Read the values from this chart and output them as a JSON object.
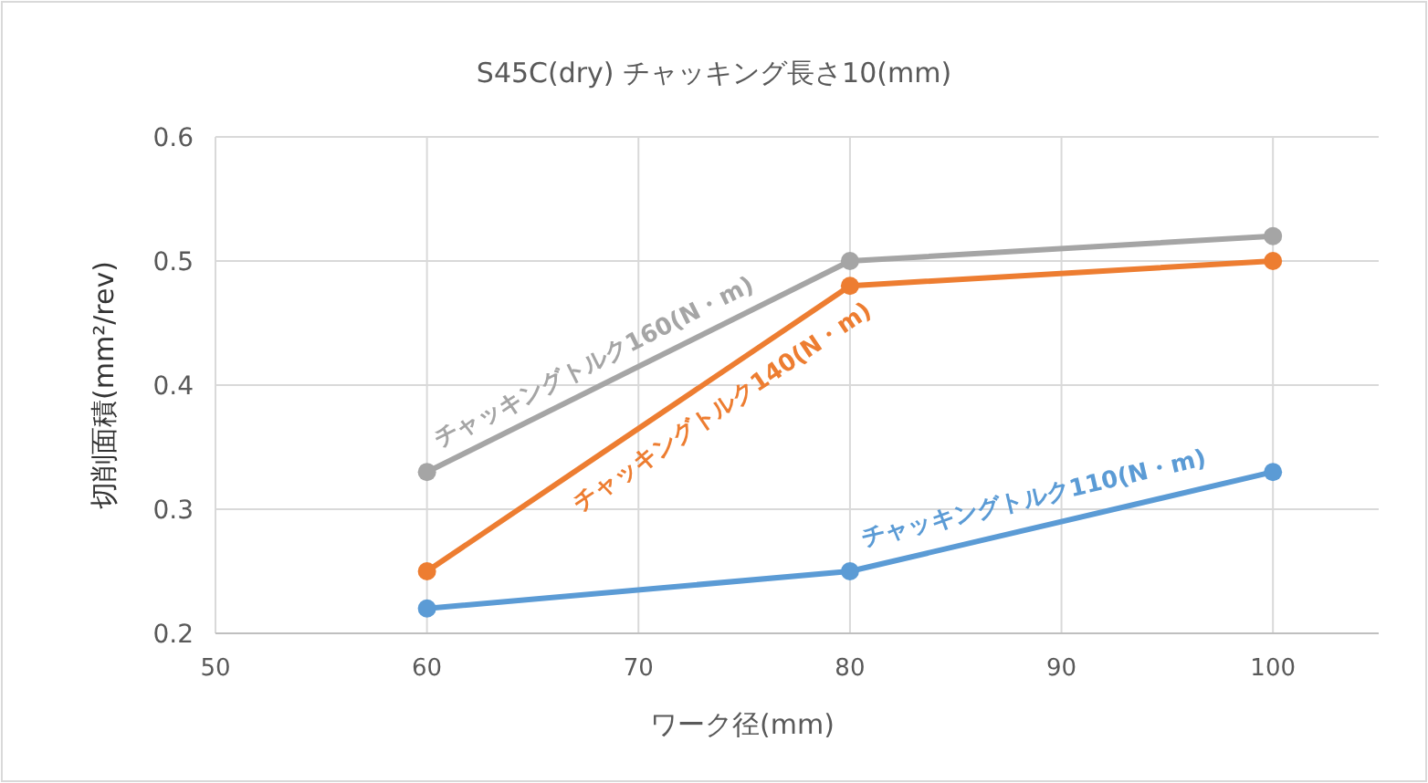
{
  "chart_data": {
    "type": "line",
    "title": "S45C(dry) チャッキング長さ10(mm)",
    "xlabel": "ワーク径(mm)",
    "ylabel": "切削面積(mm²/rev)",
    "x": [
      60,
      80,
      100
    ],
    "series": [
      {
        "name": "チャッキングトルク110(N・m)",
        "color": "#5b9bd5",
        "values": [
          0.22,
          0.25,
          0.33
        ]
      },
      {
        "name": "チャッキングトルク140(N・m)",
        "color": "#ed7d31",
        "values": [
          0.25,
          0.48,
          0.5
        ]
      },
      {
        "name": "チャッキングトルク160(N・m)",
        "color": "#a5a5a5",
        "values": [
          0.33,
          0.5,
          0.52
        ]
      }
    ],
    "xlim": [
      50,
      105
    ],
    "xticks": [
      50,
      60,
      70,
      80,
      90,
      100
    ],
    "ylim": [
      0.2,
      0.6
    ],
    "yticks": [
      0.2,
      0.3,
      0.4,
      0.5,
      0.6
    ],
    "grid": true,
    "marker": "circle",
    "line_style": "solid",
    "legend": false
  }
}
